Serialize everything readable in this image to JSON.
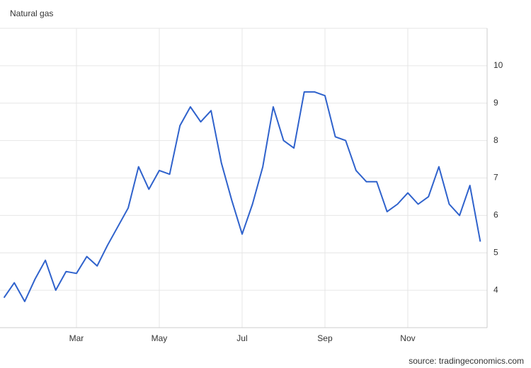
{
  "chart_data": {
    "type": "line",
    "title": "Natural gas",
    "source": "source: tradingeconomics.com",
    "categories": [
      null,
      null,
      null,
      null,
      null,
      null,
      null,
      "Mar",
      null,
      null,
      null,
      null,
      null,
      null,
      null,
      "May",
      null,
      null,
      null,
      null,
      null,
      null,
      null,
      "Jul",
      null,
      null,
      null,
      null,
      null,
      null,
      null,
      "Sep",
      null,
      null,
      null,
      null,
      null,
      null,
      null,
      "Nov",
      null,
      null,
      null,
      null,
      null,
      null,
      null
    ],
    "series": [
      {
        "name": "Natural gas",
        "color": "#2f62cc",
        "values": [
          3.8,
          4.2,
          3.7,
          4.3,
          4.8,
          4.0,
          4.5,
          4.45,
          4.9,
          4.65,
          5.2,
          5.7,
          6.2,
          7.3,
          6.7,
          7.2,
          7.1,
          8.4,
          8.9,
          8.5,
          8.8,
          7.4,
          6.4,
          5.5,
          6.3,
          7.3,
          8.9,
          8.0,
          7.8,
          9.3,
          9.3,
          9.2,
          8.1,
          8.0,
          7.2,
          6.9,
          6.9,
          6.1,
          6.3,
          6.6,
          6.3,
          6.5,
          7.3,
          6.3,
          6.0,
          6.8,
          5.3
        ]
      }
    ],
    "ylim": [
      3,
      11
    ],
    "yticks": [
      4,
      5,
      6,
      7,
      8,
      9,
      10
    ],
    "grid": true
  }
}
